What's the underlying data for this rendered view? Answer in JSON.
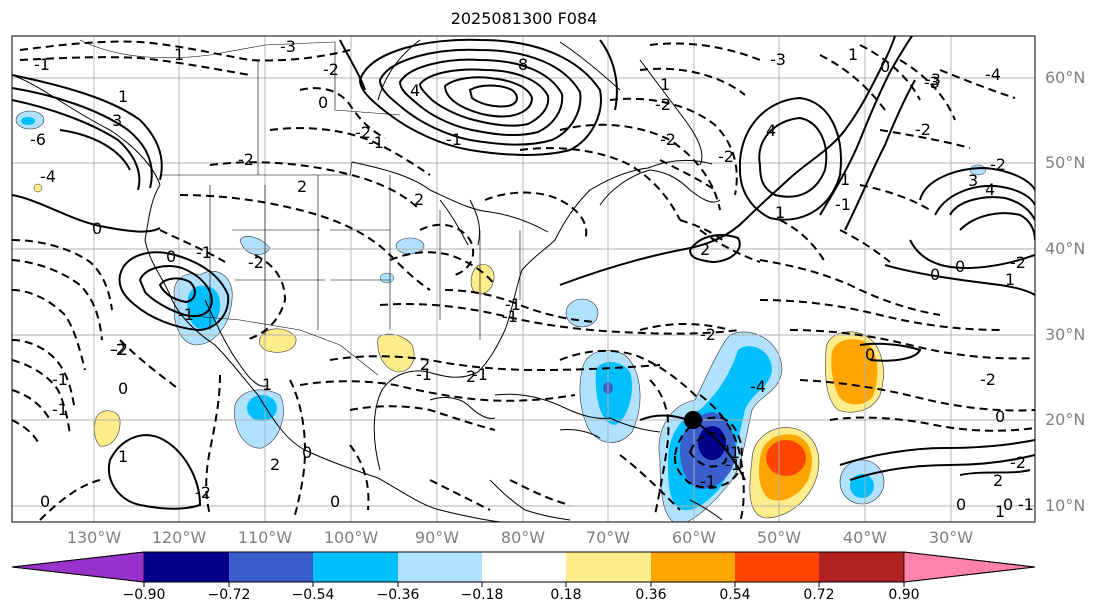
{
  "title": "2025081300 F084",
  "lat_labels": [
    "60°N",
    "50°N",
    "40°N",
    "30°N",
    "20°N",
    "10°N"
  ],
  "lon_labels": [
    "130°W",
    "120°W",
    "110°W",
    "100°W",
    "90°W",
    "80°W",
    "70°W",
    "60°W",
    "50°W",
    "40°W",
    "30°W"
  ],
  "colorbar": {
    "ticks": [
      "−0.90",
      "−0.72",
      "−0.54",
      "−0.36",
      "−0.18",
      "0.18",
      "0.36",
      "0.54",
      "0.72",
      "0.90"
    ],
    "colors": [
      "#9932cc",
      "#00008b",
      "#3a5fcd",
      "#00bfff",
      "#b0e2ff",
      "#ffffff",
      "#ffec8b",
      "#ffa500",
      "#ff4500",
      "#b22222",
      "#ff82ab"
    ]
  },
  "contour_labels": [
    "-1",
    "1",
    "-3",
    "-2",
    "8",
    "4",
    "3",
    "-6",
    "-4",
    "-2",
    "0",
    "2",
    "-2",
    "-1",
    "0",
    "-1",
    "1",
    "-2",
    "-1",
    "0",
    "0",
    "1",
    "2",
    "2",
    "0",
    "-1",
    "2",
    "-1",
    "-2",
    "-4",
    "-1",
    "2",
    "1",
    "-2",
    "1",
    "0",
    "1",
    "0",
    "-1",
    "-2",
    "2",
    "-2",
    "1",
    "-2",
    "-3",
    "-2",
    "4",
    "-2",
    "0",
    "-3",
    "-1",
    "0",
    "1",
    "-2",
    "4",
    "3",
    "-2",
    "0",
    "-1",
    "-4",
    "-3",
    "0",
    "1",
    "-1",
    "-2",
    "-1",
    "1",
    "-2",
    "0",
    "-1",
    "2",
    "-1",
    "0",
    "0",
    "-1",
    "-2",
    "1"
  ],
  "marker": "storm-position"
}
